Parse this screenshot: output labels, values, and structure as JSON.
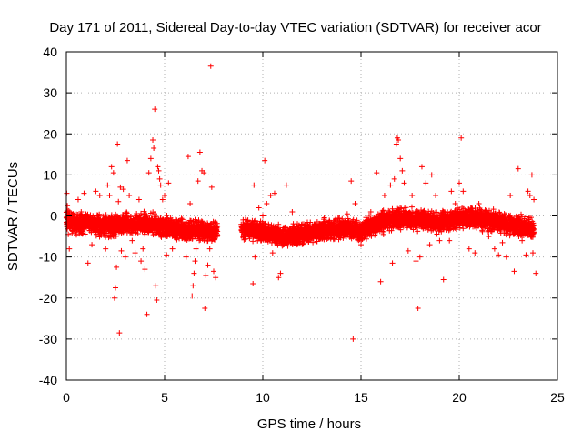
{
  "chart_data": {
    "type": "scatter",
    "title": "Day 171 of 2011, Sidereal Day-to-day VTEC variation (SDTVAR) for receiver acor",
    "xlabel": "GPS time / hours",
    "ylabel": "SDTVAR / TECUs",
    "xlim": [
      0,
      25
    ],
    "ylim": [
      -40,
      40
    ],
    "xticks": [
      0,
      5,
      10,
      15,
      20,
      25
    ],
    "yticks": [
      -40,
      -30,
      -20,
      -10,
      0,
      10,
      20,
      30,
      40
    ],
    "grid": true,
    "marker": "+",
    "series_color": "#ff0000",
    "data_gaps": [
      [
        7.7,
        8.9
      ]
    ],
    "baseline": [
      [
        0.0,
        -1.0
      ],
      [
        0.5,
        -2.0
      ],
      [
        1.0,
        -1.5
      ],
      [
        2.0,
        -2.5
      ],
      [
        3.0,
        -2.0
      ],
      [
        4.0,
        -2.0
      ],
      [
        5.0,
        -2.5
      ],
      [
        6.0,
        -3.5
      ],
      [
        7.0,
        -3.5
      ],
      [
        7.6,
        -4.0
      ],
      [
        9.0,
        -3.0
      ],
      [
        10.0,
        -4.0
      ],
      [
        11.0,
        -5.0
      ],
      [
        12.0,
        -4.5
      ],
      [
        13.0,
        -3.5
      ],
      [
        14.0,
        -3.0
      ],
      [
        15.0,
        -3.5
      ],
      [
        16.0,
        -1.5
      ],
      [
        17.0,
        -0.5
      ],
      [
        18.0,
        -1.0
      ],
      [
        19.0,
        -1.5
      ],
      [
        20.0,
        -0.5
      ],
      [
        21.0,
        -0.5
      ],
      [
        22.0,
        -1.5
      ],
      [
        23.0,
        -2.5
      ],
      [
        23.8,
        -3.0
      ]
    ],
    "points": [
      [
        0.02,
        5.5
      ],
      [
        0.05,
        2.5
      ],
      [
        0.1,
        -4.5
      ],
      [
        0.15,
        -8.0
      ],
      [
        0.6,
        4.0
      ],
      [
        0.9,
        5.5
      ],
      [
        1.1,
        -11.5
      ],
      [
        1.3,
        -7.0
      ],
      [
        1.5,
        6.0
      ],
      [
        1.7,
        5.0
      ],
      [
        2.0,
        -8.0
      ],
      [
        2.1,
        7.5
      ],
      [
        2.2,
        5.0
      ],
      [
        2.3,
        12.0
      ],
      [
        2.4,
        10.5
      ],
      [
        2.45,
        -20.0
      ],
      [
        2.5,
        -17.5
      ],
      [
        2.55,
        -12.5
      ],
      [
        2.6,
        17.5
      ],
      [
        2.65,
        3.5
      ],
      [
        2.7,
        -28.5
      ],
      [
        2.75,
        7.0
      ],
      [
        2.8,
        -8.5
      ],
      [
        2.9,
        6.5
      ],
      [
        3.0,
        -10.0
      ],
      [
        3.1,
        13.5
      ],
      [
        3.2,
        5.0
      ],
      [
        3.35,
        -6.0
      ],
      [
        3.5,
        -9.0
      ],
      [
        3.7,
        4.0
      ],
      [
        3.8,
        -11.0
      ],
      [
        3.9,
        -8.0
      ],
      [
        4.0,
        -13.0
      ],
      [
        4.1,
        -24.0
      ],
      [
        4.2,
        10.5
      ],
      [
        4.3,
        14.0
      ],
      [
        4.4,
        18.5
      ],
      [
        4.45,
        16.5
      ],
      [
        4.5,
        26.0
      ],
      [
        4.55,
        -17.0
      ],
      [
        4.6,
        -20.5
      ],
      [
        4.65,
        12.0
      ],
      [
        4.7,
        11.0
      ],
      [
        4.75,
        9.0
      ],
      [
        4.8,
        7.5
      ],
      [
        4.9,
        4.0
      ],
      [
        5.0,
        5.0
      ],
      [
        5.1,
        -9.5
      ],
      [
        5.2,
        8.0
      ],
      [
        5.4,
        -8.0
      ],
      [
        6.1,
        -10.0
      ],
      [
        6.2,
        14.5
      ],
      [
        6.3,
        3.0
      ],
      [
        6.4,
        -19.5
      ],
      [
        6.45,
        -17.0
      ],
      [
        6.5,
        -14.0
      ],
      [
        6.55,
        -11.0
      ],
      [
        6.6,
        -8.0
      ],
      [
        6.7,
        8.5
      ],
      [
        6.8,
        15.5
      ],
      [
        6.9,
        11.0
      ],
      [
        7.0,
        10.5
      ],
      [
        7.05,
        -22.5
      ],
      [
        7.1,
        -14.5
      ],
      [
        7.2,
        -12.0
      ],
      [
        7.3,
        -8.0
      ],
      [
        7.35,
        36.5
      ],
      [
        7.4,
        7.0
      ],
      [
        7.5,
        -13.5
      ],
      [
        7.6,
        -15.0
      ],
      [
        9.5,
        -16.5
      ],
      [
        9.55,
        7.5
      ],
      [
        9.6,
        -10.0
      ],
      [
        9.8,
        2.0
      ],
      [
        10.0,
        0.0
      ],
      [
        10.1,
        13.5
      ],
      [
        10.2,
        3.0
      ],
      [
        10.4,
        5.0
      ],
      [
        10.5,
        -9.0
      ],
      [
        10.6,
        5.5
      ],
      [
        10.8,
        -15.0
      ],
      [
        10.9,
        -14.0
      ],
      [
        11.0,
        -4.5
      ],
      [
        11.2,
        7.5
      ],
      [
        11.5,
        1.0
      ],
      [
        12.0,
        -2.0
      ],
      [
        13.0,
        -3.0
      ],
      [
        14.0,
        -2.0
      ],
      [
        14.3,
        0.5
      ],
      [
        14.5,
        8.5
      ],
      [
        14.6,
        -30.0
      ],
      [
        14.7,
        3.0
      ],
      [
        15.0,
        -7.0
      ],
      [
        15.2,
        -5.0
      ],
      [
        15.5,
        1.0
      ],
      [
        15.8,
        10.5
      ],
      [
        16.0,
        -16.0
      ],
      [
        16.2,
        5.0
      ],
      [
        16.5,
        7.5
      ],
      [
        16.6,
        -11.5
      ],
      [
        16.7,
        9.0
      ],
      [
        16.8,
        17.5
      ],
      [
        16.85,
        19.0
      ],
      [
        16.9,
        18.5
      ],
      [
        17.0,
        14.0
      ],
      [
        17.1,
        11.0
      ],
      [
        17.2,
        8.0
      ],
      [
        17.4,
        -8.5
      ],
      [
        17.6,
        5.0
      ],
      [
        17.8,
        -11.0
      ],
      [
        17.9,
        -22.5
      ],
      [
        18.0,
        -10.0
      ],
      [
        18.1,
        12.0
      ],
      [
        18.3,
        8.0
      ],
      [
        18.5,
        -7.0
      ],
      [
        18.6,
        10.0
      ],
      [
        18.8,
        5.0
      ],
      [
        19.0,
        -6.0
      ],
      [
        19.2,
        -15.5
      ],
      [
        19.5,
        -6.0
      ],
      [
        19.6,
        6.0
      ],
      [
        19.8,
        3.0
      ],
      [
        20.0,
        8.0
      ],
      [
        20.1,
        19.0
      ],
      [
        20.2,
        6.0
      ],
      [
        20.5,
        -8.0
      ],
      [
        20.8,
        -9.0
      ],
      [
        21.0,
        3.0
      ],
      [
        21.5,
        -5.0
      ],
      [
        21.8,
        -8.0
      ],
      [
        22.0,
        -9.5
      ],
      [
        22.2,
        -6.5
      ],
      [
        22.4,
        -10.0
      ],
      [
        22.6,
        5.0
      ],
      [
        22.8,
        -13.5
      ],
      [
        23.0,
        11.5
      ],
      [
        23.2,
        -6.0
      ],
      [
        23.4,
        -9.5
      ],
      [
        23.5,
        6.0
      ],
      [
        23.6,
        5.0
      ],
      [
        23.7,
        10.0
      ],
      [
        23.75,
        -9.0
      ],
      [
        23.8,
        4.0
      ],
      [
        23.9,
        -14.0
      ]
    ]
  }
}
